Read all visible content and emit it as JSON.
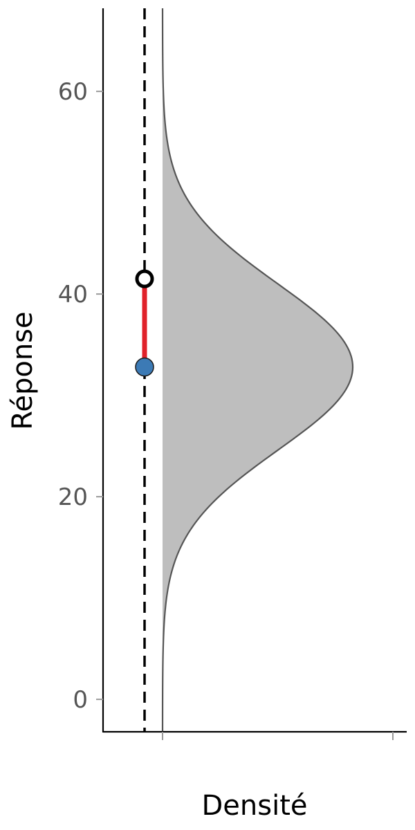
{
  "chart_data": {
    "type": "area",
    "orientation": "vertical-density",
    "xlabel": "Densité",
    "ylabel": "Réponse",
    "ylim": [
      -3.2,
      68.2
    ],
    "yticks": [
      0,
      20,
      40,
      60
    ],
    "xticks_count": 2,
    "density": {
      "distribution": "normal",
      "mean": 32.8,
      "sd": 8.2,
      "fill": "#bebebe",
      "stroke": "#555555"
    },
    "reference_line": {
      "x": -0.08,
      "style": "dashed",
      "color": "#000000"
    },
    "segment": {
      "y_start": 32.8,
      "y_end": 41.5,
      "color": "#e0212a"
    },
    "points": [
      {
        "y": 32.8,
        "fill": "#3c7ab5",
        "style": "filled"
      },
      {
        "y": 41.5,
        "fill": "#ffffff",
        "style": "open"
      }
    ],
    "grid": false
  }
}
